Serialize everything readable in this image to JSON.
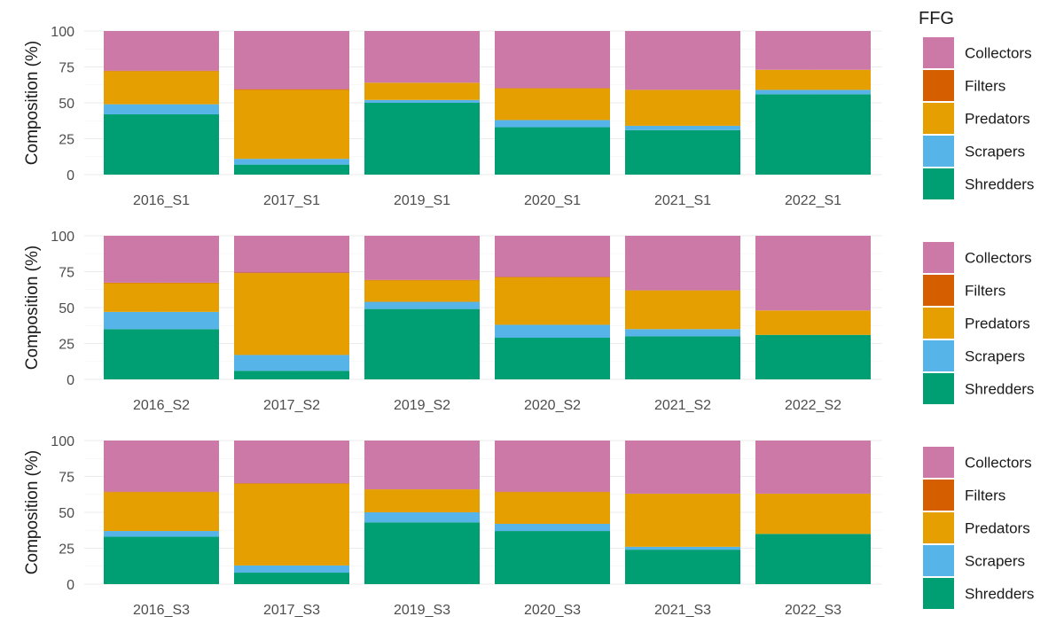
{
  "legend": {
    "title": "FFG",
    "entries": [
      "Collectors",
      "Filters",
      "Predators",
      "Scrapers",
      "Shredders"
    ]
  },
  "colors": {
    "Collectors": "#CC79A7",
    "Filters": "#D55E00",
    "Predators": "#E69F00",
    "Scrapers": "#56B4E9",
    "Shredders": "#009E73"
  },
  "chart_data": [
    {
      "type": "bar",
      "stacked": true,
      "ylabel": "Composition (%)",
      "ylim": [
        0,
        100
      ],
      "yticks": [
        0,
        25,
        50,
        75,
        100
      ],
      "grid": true,
      "legend_position": "right",
      "categories": [
        "2016_S1",
        "2017_S1",
        "2019_S1",
        "2020_S1",
        "2021_S1",
        "2022_S1"
      ],
      "series": [
        {
          "name": "Shredders",
          "values": [
            42,
            7,
            50,
            33,
            31,
            56
          ]
        },
        {
          "name": "Scrapers",
          "values": [
            7,
            4,
            2,
            5,
            3,
            3
          ]
        },
        {
          "name": "Predators",
          "values": [
            23,
            48,
            12,
            22,
            25,
            14
          ]
        },
        {
          "name": "Filters",
          "values": [
            0.4,
            0.5,
            0,
            0.3,
            0,
            0
          ]
        },
        {
          "name": "Collectors",
          "values": [
            27.6,
            40.5,
            36,
            39.7,
            41,
            27
          ]
        }
      ]
    },
    {
      "type": "bar",
      "stacked": true,
      "ylabel": "Composition (%)",
      "ylim": [
        0,
        100
      ],
      "yticks": [
        0,
        25,
        50,
        75,
        100
      ],
      "grid": true,
      "legend_position": "right",
      "categories": [
        "2016_S2",
        "2017_S2",
        "2019_S2",
        "2020_S2",
        "2021_S2",
        "2022_S2"
      ],
      "series": [
        {
          "name": "Shredders",
          "values": [
            35,
            6,
            49,
            29,
            30,
            31
          ]
        },
        {
          "name": "Scrapers",
          "values": [
            12,
            11,
            5,
            9,
            5,
            0
          ]
        },
        {
          "name": "Predators",
          "values": [
            20,
            57,
            15,
            33,
            27,
            17
          ]
        },
        {
          "name": "Filters",
          "values": [
            0.4,
            0.4,
            0.3,
            0.4,
            0,
            0
          ]
        },
        {
          "name": "Collectors",
          "values": [
            32.6,
            25.6,
            30.7,
            28.6,
            38,
            52
          ]
        }
      ]
    },
    {
      "type": "bar",
      "stacked": true,
      "ylabel": "Composition (%)",
      "ylim": [
        0,
        100
      ],
      "yticks": [
        0,
        25,
        50,
        75,
        100
      ],
      "grid": true,
      "legend_position": "right",
      "categories": [
        "2016_S3",
        "2017_S3",
        "2019_S3",
        "2020_S3",
        "2021_S3",
        "2022_S3"
      ],
      "series": [
        {
          "name": "Shredders",
          "values": [
            33,
            8,
            43,
            37,
            24,
            35
          ]
        },
        {
          "name": "Scrapers",
          "values": [
            4,
            5,
            7,
            5,
            2,
            0
          ]
        },
        {
          "name": "Predators",
          "values": [
            27,
            57,
            16,
            22,
            37,
            28
          ]
        },
        {
          "name": "Filters",
          "values": [
            0.4,
            0.3,
            0,
            0.4,
            0,
            0
          ]
        },
        {
          "name": "Collectors",
          "values": [
            35.6,
            29.7,
            34,
            35.6,
            37,
            37
          ]
        }
      ]
    }
  ]
}
